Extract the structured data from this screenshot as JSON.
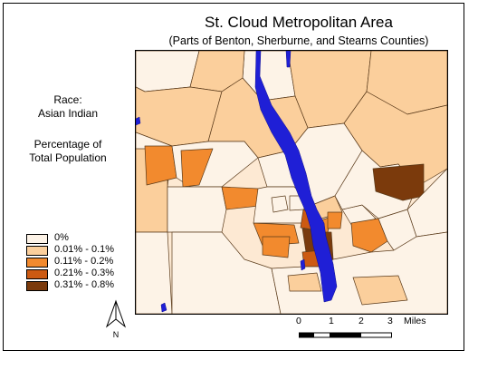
{
  "title": "St. Cloud Metropolitan Area",
  "subtitle": "(Parts of Benton, Sherburne, and Stearns Counties)",
  "side_text": {
    "race_label": "Race:",
    "race_value": "Asian Indian",
    "measure_line1": "Percentage of",
    "measure_line2": "Total Population"
  },
  "legend": [
    {
      "label": "0%",
      "color": "#fdf3e7"
    },
    {
      "label": "0.01% - 0.1%",
      "color": "#fbcf9c"
    },
    {
      "label": "0.11% - 0.2%",
      "color": "#f28a2e"
    },
    {
      "label": "0.21% - 0.3%",
      "color": "#cc5a12"
    },
    {
      "label": "0.31% - 0.8%",
      "color": "#7b3a0c"
    }
  ],
  "north_label": "N",
  "scale": {
    "ticks": [
      "0",
      "1",
      "2",
      "3"
    ],
    "unit": "Miles"
  },
  "colors": {
    "river": "#1f1fd6",
    "boundary": "#5a3a1a",
    "background": "#fde9d3"
  }
}
